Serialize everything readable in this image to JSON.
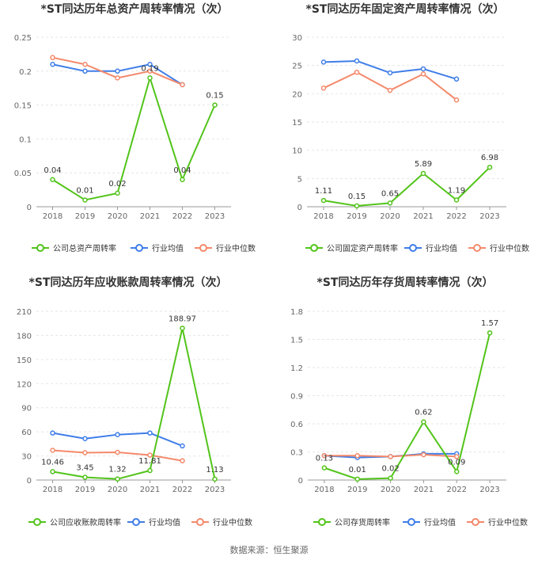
{
  "source_text": "数据来源：恒生聚源",
  "charts": [
    {
      "chart_data": {
        "type": "line",
        "title": "*ST同达历年总资产周转率情况（次）",
        "categories": [
          "2018",
          "2019",
          "2020",
          "2021",
          "2022",
          "2023"
        ],
        "ylim": [
          0,
          0.25
        ],
        "yticks": [
          "0",
          "0.05",
          "0.1",
          "0.15",
          "0.2",
          "0.25"
        ],
        "ytick_values": [
          0,
          0.05,
          0.1,
          0.15,
          0.2,
          0.25
        ],
        "grid": true,
        "legend_position": "bottom",
        "series": [
          {
            "name": "公司总资产周转率",
            "values": [
              0.04,
              0.01,
              0.02,
              0.19,
              0.04,
              0.15
            ],
            "labels": [
              "0.04",
              "0.01",
              "0.02",
              "0.19",
              "0.04",
              "0.15"
            ],
            "color": "#52c41a"
          },
          {
            "name": "行业均值",
            "values": [
              0.21,
              0.2,
              0.2,
              0.21,
              0.18,
              null
            ],
            "color": "#3f7ee8"
          },
          {
            "name": "行业中位数",
            "values": [
              0.22,
              0.21,
              0.19,
              0.2,
              0.18,
              null
            ],
            "color": "#f4896b"
          }
        ]
      }
    },
    {
      "chart_data": {
        "type": "line",
        "title": "*ST同达历年固定资产周转率情况（次）",
        "categories": [
          "2018",
          "2019",
          "2020",
          "2021",
          "2022",
          "2023"
        ],
        "ylim": [
          0,
          30
        ],
        "yticks": [
          "0",
          "5",
          "10",
          "15",
          "20",
          "25",
          "30"
        ],
        "ytick_values": [
          0,
          5,
          10,
          15,
          20,
          25,
          30
        ],
        "grid": true,
        "legend_position": "bottom",
        "series": [
          {
            "name": "公司固定资产周转率",
            "values": [
              1.11,
              0.15,
              0.65,
              5.89,
              1.19,
              6.98
            ],
            "labels": [
              "1.11",
              "0.15",
              "0.65",
              "5.89",
              "1.19",
              "6.98"
            ],
            "color": "#52c41a"
          },
          {
            "name": "行业均值",
            "values": [
              25.6,
              25.8,
              23.7,
              24.4,
              22.6,
              null
            ],
            "color": "#3f7ee8"
          },
          {
            "name": "行业中位数",
            "values": [
              21.0,
              23.8,
              20.6,
              23.5,
              18.9,
              null
            ],
            "color": "#f4896b"
          }
        ]
      }
    },
    {
      "chart_data": {
        "type": "line",
        "title": "*ST同达历年应收账款周转率情况（次）",
        "categories": [
          "2018",
          "2019",
          "2020",
          "2021",
          "2022",
          "2023"
        ],
        "ylim": [
          0,
          210
        ],
        "yticks": [
          "0",
          "30",
          "60",
          "90",
          "120",
          "150",
          "180",
          "210"
        ],
        "ytick_values": [
          0,
          30,
          60,
          90,
          120,
          150,
          180,
          210
        ],
        "grid": true,
        "legend_position": "bottom",
        "series": [
          {
            "name": "公司应收账款周转率",
            "values": [
              10.46,
              3.45,
              1.32,
              11.81,
              188.97,
              1.13
            ],
            "labels": [
              "10.46",
              "3.45",
              "1.32",
              "11.81",
              "188.97",
              "1.13"
            ],
            "color": "#52c41a"
          },
          {
            "name": "行业均值",
            "values": [
              58.5,
              51.5,
              56.5,
              58.5,
              42.5,
              null
            ],
            "color": "#3f7ee8"
          },
          {
            "name": "行业中位数",
            "values": [
              37.0,
              34.0,
              34.5,
              31.0,
              24.0,
              null
            ],
            "color": "#f4896b"
          }
        ]
      }
    },
    {
      "chart_data": {
        "type": "line",
        "title": "*ST同达历年存货周转率情况（次）",
        "categories": [
          "2018",
          "2019",
          "2020",
          "2021",
          "2022",
          "2023"
        ],
        "ylim": [
          0,
          1.8
        ],
        "yticks": [
          "0",
          "0.3",
          "0.6",
          "0.9",
          "1.2",
          "1.5",
          "1.8"
        ],
        "ytick_values": [
          0,
          0.3,
          0.6,
          0.9,
          1.2,
          1.5,
          1.8
        ],
        "grid": true,
        "legend_position": "bottom",
        "series": [
          {
            "name": "公司存货周转率",
            "values": [
              0.13,
              0.01,
              0.02,
              0.62,
              0.09,
              1.57
            ],
            "labels": [
              "0.13",
              "0.01",
              "0.02",
              "0.62",
              "0.09",
              "1.57"
            ],
            "color": "#52c41a"
          },
          {
            "name": "行业均值",
            "values": [
              0.26,
              0.24,
              0.25,
              0.28,
              0.28,
              null
            ],
            "color": "#3f7ee8"
          },
          {
            "name": "行业中位数",
            "values": [
              0.26,
              0.26,
              0.25,
              0.27,
              0.25,
              null
            ],
            "color": "#f4896b"
          }
        ]
      }
    }
  ]
}
